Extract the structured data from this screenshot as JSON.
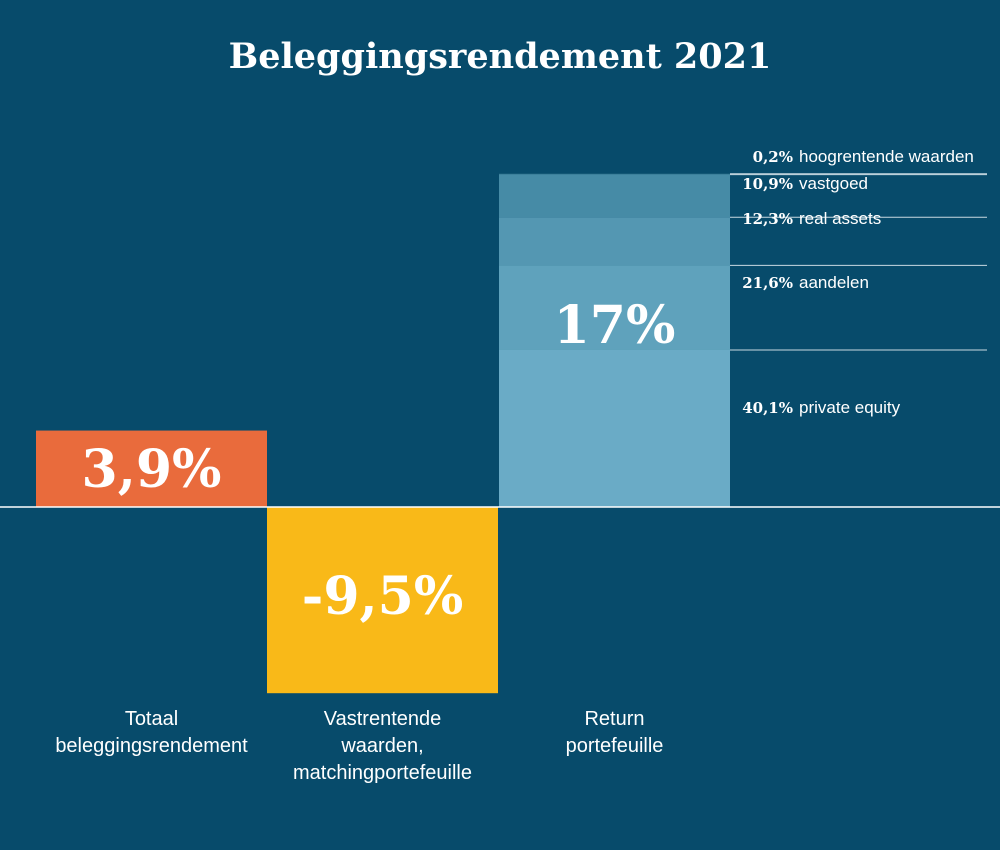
{
  "chart_data": {
    "type": "bar",
    "title": "Beleggingsrendement 2021",
    "bars": [
      {
        "category_lines": [
          "Totaal",
          "beleggingsrendement"
        ],
        "value": 3.9,
        "label": "3,9%",
        "color": "#e96b3c"
      },
      {
        "category_lines": [
          "Vastrentende",
          "waarden,",
          "matchingportefeuille"
        ],
        "value": -9.5,
        "label": "-9,5%",
        "color": "#f9b918"
      },
      {
        "category_lines": [
          "Return",
          "portefeuille"
        ],
        "value": 17,
        "label": "17%",
        "color": "#6aabc6"
      }
    ],
    "breakdown": {
      "of_bar": "Return portefeuille",
      "segments": [
        {
          "pct": "40,1%",
          "name": "private equity",
          "value": 40.1,
          "color": "#6aabc6"
        },
        {
          "pct": "21,6%",
          "name": "aandelen",
          "value": 21.6,
          "color": "#5fa2bc"
        },
        {
          "pct": "12,3%",
          "name": "real assets",
          "value": 12.3,
          "color": "#5497b2"
        },
        {
          "pct": "10,9%",
          "name": "vastgoed",
          "value": 10.9,
          "color": "#468ba6"
        },
        {
          "pct": "0,2%",
          "name": "hoogrentende waarden",
          "value": 0.2,
          "color": "#3d819c"
        }
      ]
    }
  },
  "colors": {
    "background": "#074b6b",
    "text": "#ffffff",
    "guide": "#c9d9e2"
  }
}
